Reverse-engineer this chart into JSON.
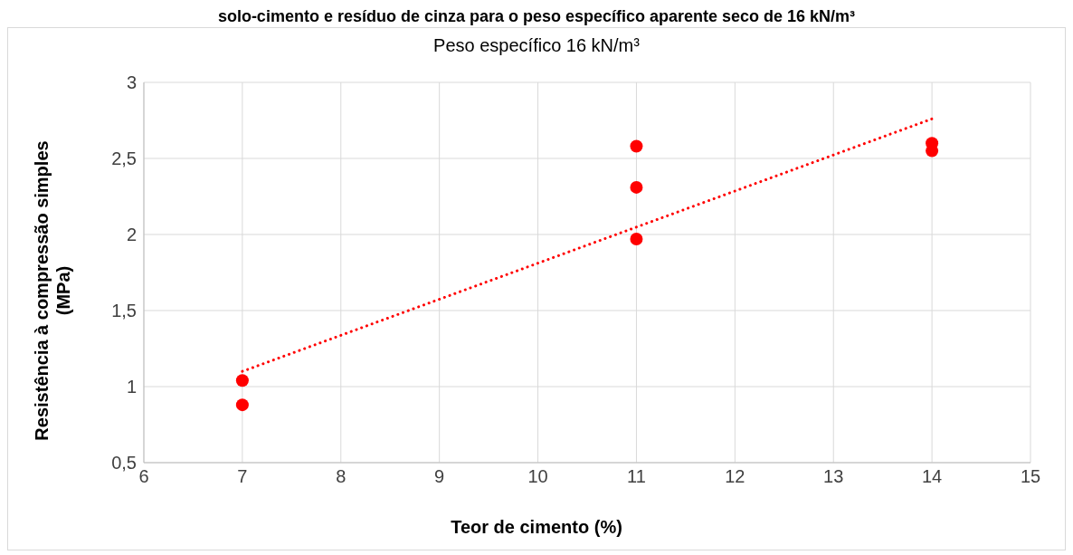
{
  "chart_data": {
    "type": "scatter",
    "title": "solo-cimento e resíduo de cinza para o peso específico aparente seco de 16 kN/m³",
    "subtitle": "Peso específico 16 kN/m³",
    "xlabel": "Teor de cimento (%)",
    "ylabel": "Resistência à compressão simples (MPa)",
    "xlim": [
      6,
      15
    ],
    "xticks": [
      6,
      7,
      8,
      9,
      10,
      11,
      12,
      13,
      14,
      15
    ],
    "ylim": [
      0.5,
      3
    ],
    "yticks": [
      {
        "value": 0.5,
        "label": "0,5"
      },
      1,
      {
        "value": 1.5,
        "label": "1,5"
      },
      2,
      {
        "value": 2.5,
        "label": "2,5"
      },
      3
    ],
    "grid": true,
    "series": [
      {
        "color": "#ff0000",
        "marker": "circle",
        "x": [
          7,
          7,
          11,
          11,
          11,
          14,
          14
        ],
        "values": [
          1.04,
          0.88,
          2.58,
          2.31,
          1.97,
          2.6,
          2.55
        ]
      },
      {
        "type": "line",
        "color": "#ff0000",
        "marker": "none",
        "line_style": "dotted",
        "x": [
          7,
          14
        ],
        "values": [
          1.1,
          2.76
        ]
      }
    ]
  }
}
